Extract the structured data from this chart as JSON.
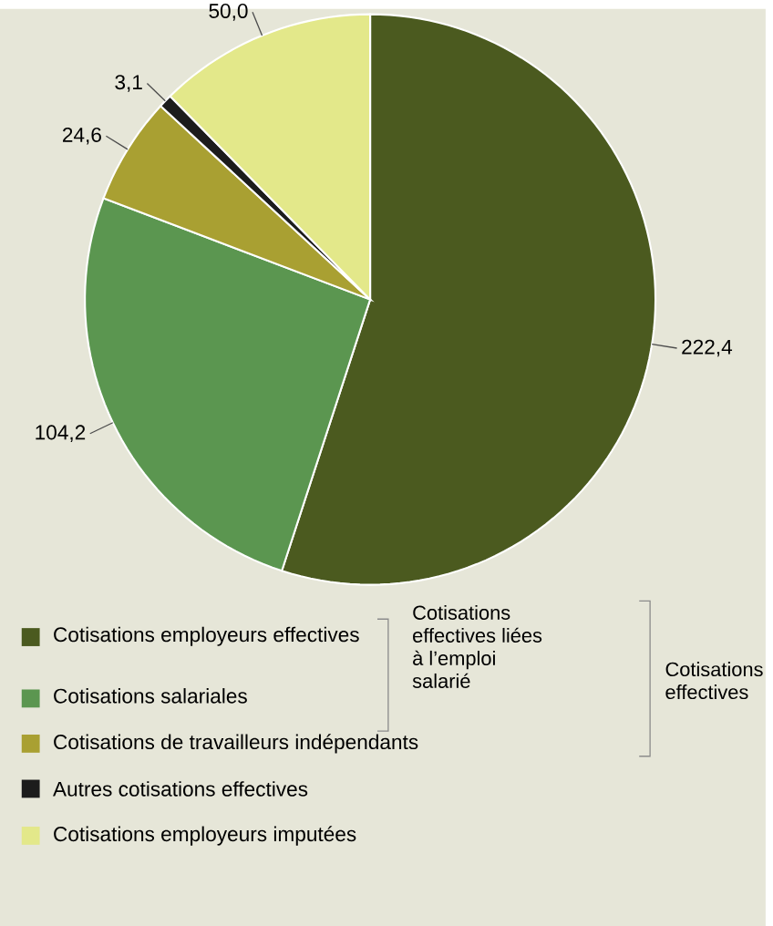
{
  "chart_data": {
    "type": "pie",
    "categories": [
      "Cotisations employeurs effectives",
      "Cotisations salariales",
      "Cotisations de travailleurs indépendants",
      "Autres cotisations effectives",
      "Cotisations employeurs imputées"
    ],
    "values": [
      222.4,
      104.2,
      24.6,
      3.1,
      50.0
    ],
    "value_labels": [
      "222,4",
      "104,2",
      "24,6",
      "3,1",
      "50,0"
    ],
    "colors": [
      "#4b5a1f",
      "#5b9650",
      "#a9a032",
      "#1c1c1c",
      "#e3e88a"
    ],
    "legend": "bottom",
    "annotations": [
      "Cotisations effectives liées à l’emploi salarié",
      "Cotisations effectives"
    ]
  }
}
